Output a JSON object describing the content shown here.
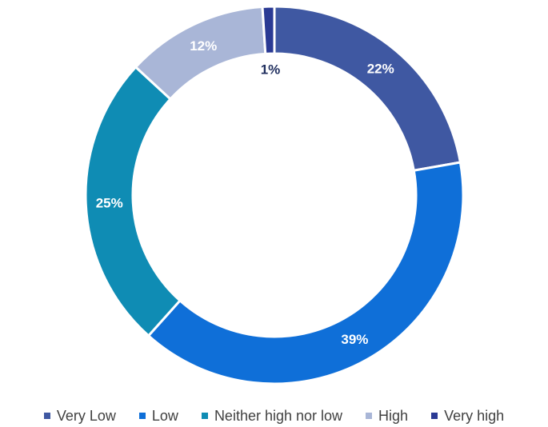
{
  "chart_data": {
    "type": "pie",
    "subtype": "donut",
    "categories": [
      "Very Low",
      "Low",
      "Neither high nor low",
      "High",
      "Very high"
    ],
    "values": [
      22,
      39,
      25,
      12,
      1
    ],
    "labels": [
      "22%",
      "39%",
      "25%",
      "12%",
      "1%"
    ],
    "colors": [
      "#3f58a2",
      "#0f6fd8",
      "#0f8cb4",
      "#a9b6d7",
      "#2a3a94"
    ],
    "label_colors": [
      "#ffffff",
      "#ffffff",
      "#ffffff",
      "#ffffff",
      "#1f2e5e"
    ],
    "legend_position": "bottom",
    "start_angle_deg": 0,
    "direction": "clockwise"
  }
}
